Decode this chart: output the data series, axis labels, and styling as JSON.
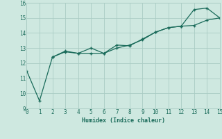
{
  "xlabel": "Humidex (Indice chaleur)",
  "bg_color": "#cee8e0",
  "grid_color": "#aaccC4",
  "line_color": "#1a6b5a",
  "line1_x": [
    0,
    1,
    2,
    3,
    4,
    5,
    6,
    7,
    8,
    9,
    10,
    11,
    12,
    13,
    14,
    15
  ],
  "line1_y": [
    11.5,
    9.5,
    12.4,
    12.8,
    12.65,
    13.0,
    12.65,
    13.2,
    13.15,
    13.6,
    14.05,
    14.35,
    14.45,
    15.55,
    15.65,
    15.0
  ],
  "line2_x": [
    2,
    3,
    4,
    5,
    6,
    7,
    8,
    9,
    10,
    11,
    12,
    13,
    14,
    15
  ],
  "line2_y": [
    12.4,
    12.75,
    12.65,
    12.65,
    12.65,
    13.0,
    13.2,
    13.55,
    14.05,
    14.35,
    14.45,
    14.5,
    14.85,
    15.0
  ],
  "xlim": [
    0,
    15
  ],
  "ylim": [
    9.0,
    16.0
  ],
  "xticks": [
    0,
    1,
    2,
    3,
    4,
    5,
    6,
    7,
    8,
    9,
    10,
    11,
    12,
    13,
    14,
    15
  ],
  "yticks": [
    9,
    10,
    11,
    12,
    13,
    14,
    15,
    16
  ]
}
